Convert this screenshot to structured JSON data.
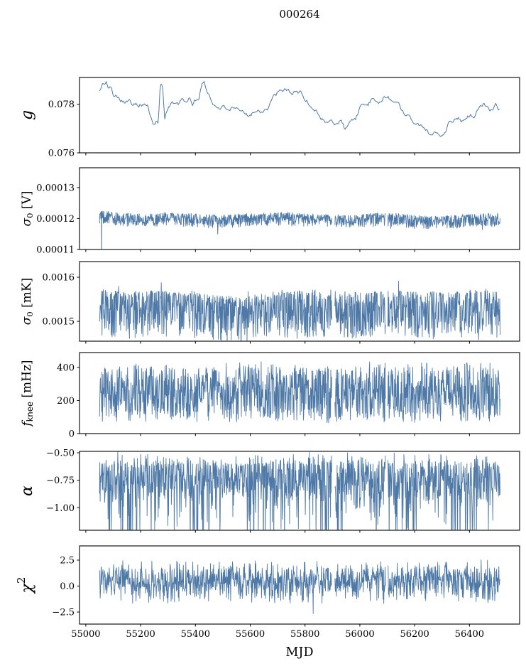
{
  "title": "000264",
  "colors": {
    "line": "#4e79a7",
    "axis": "#000000",
    "text": "#000000",
    "background": "#ffffff"
  },
  "chart_data": {
    "type": "line",
    "title": "000264",
    "xlabel": "MJD",
    "legend": "none",
    "grid": false,
    "x_axis": {
      "label": "MJD",
      "lim": [
        54977,
        56583
      ],
      "ticks": [
        55000,
        55200,
        55400,
        55600,
        55800,
        56000,
        56200,
        56400
      ],
      "tick_labels": [
        "55000",
        "55200",
        "55400",
        "55600",
        "55800",
        "56000",
        "56200",
        "56400"
      ],
      "data_range": [
        55050,
        56512
      ]
    },
    "gaps": [
      [
        55898,
        55908
      ],
      [
        56094,
        56102
      ]
    ],
    "panels": [
      {
        "id": "g",
        "ylabel": "g",
        "ylabel_size": 22,
        "ylabel_parts": [
          {
            "t": "g",
            "style": "italic"
          }
        ],
        "ylim": [
          0.076,
          0.0791
        ],
        "yticks": [
          0.076,
          0.078
        ],
        "ytick_labels": [
          "0.076",
          "0.078"
        ],
        "series_type": "smooth",
        "seed": 101,
        "anchors": [
          [
            55055,
            0.0786
          ],
          [
            55062,
            0.07888
          ],
          [
            55068,
            0.07878
          ],
          [
            55075,
            0.07885
          ],
          [
            55082,
            0.07872
          ],
          [
            55092,
            0.0787
          ],
          [
            55100,
            0.07832
          ],
          [
            55108,
            0.07845
          ],
          [
            55115,
            0.0784
          ],
          [
            55125,
            0.0782
          ],
          [
            55135,
            0.07818
          ],
          [
            55145,
            0.0781
          ],
          [
            55158,
            0.07812
          ],
          [
            55170,
            0.07802
          ],
          [
            55180,
            0.0781
          ],
          [
            55192,
            0.078
          ],
          [
            55205,
            0.07797
          ],
          [
            55218,
            0.078
          ],
          [
            55228,
            0.07788
          ],
          [
            55238,
            0.0774
          ],
          [
            55248,
            0.07712
          ],
          [
            55258,
            0.0773
          ],
          [
            55264,
            0.07718
          ],
          [
            55272,
            0.0788
          ],
          [
            55280,
            0.07885
          ],
          [
            55288,
            0.0774
          ],
          [
            55296,
            0.0778
          ],
          [
            55305,
            0.07795
          ],
          [
            55315,
            0.07808
          ],
          [
            55328,
            0.078
          ],
          [
            55340,
            0.07798
          ],
          [
            55352,
            0.0782
          ],
          [
            55365,
            0.07812
          ],
          [
            55378,
            0.0782
          ],
          [
            55390,
            0.078
          ],
          [
            55402,
            0.0782
          ],
          [
            55412,
            0.07818
          ],
          [
            55422,
            0.0788
          ],
          [
            55432,
            0.07888
          ],
          [
            55442,
            0.0785
          ],
          [
            55452,
            0.0784
          ],
          [
            55462,
            0.078
          ],
          [
            55475,
            0.0779
          ],
          [
            55490,
            0.07788
          ],
          [
            55505,
            0.07785
          ],
          [
            55520,
            0.07782
          ],
          [
            55535,
            0.07778
          ],
          [
            55550,
            0.07775
          ],
          [
            55565,
            0.0777
          ],
          [
            55580,
            0.07762
          ],
          [
            55595,
            0.07758
          ],
          [
            55610,
            0.07765
          ],
          [
            55625,
            0.07777
          ],
          [
            55638,
            0.07772
          ],
          [
            55652,
            0.07778
          ],
          [
            55665,
            0.07782
          ],
          [
            55680,
            0.07822
          ],
          [
            55695,
            0.0784
          ],
          [
            55710,
            0.0785
          ],
          [
            55725,
            0.07858
          ],
          [
            55740,
            0.0786
          ],
          [
            55755,
            0.07842
          ],
          [
            55770,
            0.07852
          ],
          [
            55785,
            0.07848
          ],
          [
            55800,
            0.0782
          ],
          [
            55815,
            0.078
          ],
          [
            55830,
            0.0778
          ],
          [
            55845,
            0.07772
          ],
          [
            55858,
            0.07742
          ],
          [
            55870,
            0.0773
          ],
          [
            55882,
            0.07725
          ],
          [
            55895,
            0.07728
          ],
          [
            55908,
            0.0772
          ],
          [
            55920,
            0.07722
          ],
          [
            55932,
            0.0774
          ],
          [
            55945,
            0.07698
          ],
          [
            55958,
            0.07725
          ],
          [
            55970,
            0.07735
          ],
          [
            55985,
            0.0774
          ],
          [
            56000,
            0.07788
          ],
          [
            56015,
            0.07795
          ],
          [
            56030,
            0.078
          ],
          [
            56045,
            0.0782
          ],
          [
            56060,
            0.07798
          ],
          [
            56075,
            0.07815
          ],
          [
            56090,
            0.07828
          ],
          [
            56105,
            0.07825
          ],
          [
            56120,
            0.07808
          ],
          [
            56135,
            0.07818
          ],
          [
            56150,
            0.0778
          ],
          [
            56165,
            0.0776
          ],
          [
            56180,
            0.07755
          ],
          [
            56195,
            0.07735
          ],
          [
            56210,
            0.0772
          ],
          [
            56225,
            0.07712
          ],
          [
            56240,
            0.0769
          ],
          [
            56255,
            0.0768
          ],
          [
            56270,
            0.07685
          ],
          [
            56285,
            0.0768
          ],
          [
            56300,
            0.07672
          ],
          [
            56315,
            0.077
          ],
          [
            56330,
            0.0773
          ],
          [
            56345,
            0.07738
          ],
          [
            56360,
            0.07742
          ],
          [
            56375,
            0.0773
          ],
          [
            56390,
            0.07752
          ],
          [
            56405,
            0.07755
          ],
          [
            56420,
            0.07752
          ],
          [
            56435,
            0.0778
          ],
          [
            56450,
            0.078
          ],
          [
            56465,
            0.07792
          ],
          [
            56480,
            0.07778
          ],
          [
            56495,
            0.078
          ],
          [
            56505,
            0.07785
          ],
          [
            56512,
            0.0777
          ]
        ]
      },
      {
        "id": "sigma0-V",
        "ylabel": "σ0 [V]",
        "ylabel_size": 17,
        "ylabel_parts": [
          {
            "t": "σ",
            "style": "italic"
          },
          {
            "t": "0",
            "style": "sub"
          },
          {
            "t": " [V]",
            "style": "normal"
          }
        ],
        "ylim": [
          0.00011,
          0.0001364
        ],
        "yticks": [
          0.00011,
          0.00012,
          0.00013
        ],
        "ytick_labels": [
          "0.00011",
          "0.00012",
          "0.00013"
        ],
        "series_type": "noise",
        "seed": 202,
        "events": [
          [
            55058,
            0.000103
          ]
        ],
        "noise": {
          "step": 1.15,
          "env_anchors": [
            [
              55050,
              0.0001224
            ],
            [
              55080,
              0.0001222
            ],
            [
              55120,
              0.0001216
            ],
            [
              55180,
              0.0001214
            ],
            [
              55240,
              0.0001214
            ],
            [
              55300,
              0.0001218
            ],
            [
              55360,
              0.0001215
            ],
            [
              55420,
              0.0001212
            ],
            [
              55480,
              0.000121
            ],
            [
              55540,
              0.0001212
            ],
            [
              55600,
              0.0001214
            ],
            [
              55660,
              0.0001217
            ],
            [
              55720,
              0.0001219
            ],
            [
              55780,
              0.0001215
            ],
            [
              55840,
              0.0001212
            ],
            [
              55900,
              0.0001211
            ],
            [
              55960,
              0.000121
            ],
            [
              56020,
              0.0001213
            ],
            [
              56080,
              0.0001217
            ],
            [
              56140,
              0.0001215
            ],
            [
              56200,
              0.0001208
            ],
            [
              56260,
              0.0001205
            ],
            [
              56320,
              0.0001208
            ],
            [
              56380,
              0.0001211
            ],
            [
              56440,
              0.0001214
            ],
            [
              56512,
              0.0001215
            ]
          ],
          "a_up": 3e-07,
          "e_up": 1.0,
          "a_dn": 4.2e-06,
          "e_dn": 1.3,
          "p_extra_dn": 0.01,
          "extra_dn": 2.8e-06,
          "p_extra_up": 0,
          "extra_up": 0
        }
      },
      {
        "id": "sigma0-mK",
        "ylabel": "σ0 [mK]",
        "ylabel_size": 17,
        "ylabel_parts": [
          {
            "t": "σ",
            "style": "italic"
          },
          {
            "t": "0",
            "style": "sub"
          },
          {
            "t": " [mK]",
            "style": "normal"
          }
        ],
        "ylim": [
          0.001455,
          0.0016355
        ],
        "yticks": [
          0.0015,
          0.0016
        ],
        "ytick_labels": [
          "0.0015",
          "0.0016"
        ],
        "series_type": "noise",
        "seed": 303,
        "noise": {
          "step": 1.15,
          "env_anchors": [
            [
              55050,
              0.00157
            ],
            [
              55120,
              0.001566
            ],
            [
              55200,
              0.001564
            ],
            [
              55260,
              0.001568
            ],
            [
              55320,
              0.001565
            ],
            [
              55400,
              0.001565
            ],
            [
              55480,
              0.001556
            ],
            [
              55560,
              0.001554
            ],
            [
              55640,
              0.00156
            ],
            [
              55720,
              0.001564
            ],
            [
              55800,
              0.001566
            ],
            [
              55880,
              0.001566
            ],
            [
              55960,
              0.001564
            ],
            [
              56040,
              0.001566
            ],
            [
              56120,
              0.001568
            ],
            [
              56200,
              0.001566
            ],
            [
              56280,
              0.001564
            ],
            [
              56360,
              0.001566
            ],
            [
              56440,
              0.001568
            ],
            [
              56512,
              0.001566
            ]
          ],
          "a_up": 6e-06,
          "e_up": 2.5,
          "a_dn": 0.000105,
          "e_dn": 1.5,
          "p_extra_dn": 0.012,
          "extra_dn": 4e-05,
          "p_extra_up": 0.01,
          "extra_up": 3e-05
        }
      },
      {
        "id": "fknee",
        "ylabel": "f_knee [mHz]",
        "ylabel_size": 17,
        "ylabel_parts": [
          {
            "t": "f",
            "style": "italic"
          },
          {
            "t": "knee",
            "style": "sub_sans"
          },
          {
            "t": " [mHz]",
            "style": "normal"
          }
        ],
        "ylim": [
          0,
          490
        ],
        "yticks": [
          0,
          200,
          400
        ],
        "ytick_labels": [
          "0",
          "200",
          "400"
        ],
        "series_type": "noise",
        "seed": 404,
        "noise": {
          "step": 1.15,
          "env_anchors": [
            [
              55050,
              400
            ],
            [
              56512,
              400
            ]
          ],
          "a_up": 48,
          "e_up": 3.0,
          "a_dn": 335,
          "e_dn": 1.05,
          "p_extra_dn": 0.02,
          "extra_dn": 55,
          "p_extra_up": 0.01,
          "extra_up": 30
        }
      },
      {
        "id": "alpha",
        "ylabel": "α",
        "ylabel_size": 22,
        "ylabel_parts": [
          {
            "t": "α",
            "style": "italic"
          }
        ],
        "ylim": [
          -1.204,
          -0.487
        ],
        "yticks": [
          -0.5,
          -0.75,
          -1.0
        ],
        "ytick_labels": [
          "−0.50",
          "−0.75",
          "−1.00"
        ],
        "series_type": "noise",
        "seed": 505,
        "noise": {
          "step": 1.15,
          "env_anchors": [
            [
              55050,
              -0.6
            ],
            [
              56512,
              -0.6
            ]
          ],
          "a_up": 0.11,
          "e_up": 3.0,
          "a_dn": 0.34,
          "e_dn": 1.7,
          "p_extra_dn": 0.28,
          "extra_dn": 0.55,
          "p_extra_up": 0.02,
          "extra_up": 0.1,
          "mod": {
            "base": 0.55,
            "amp": 0.85,
            "freq": 0.013
          }
        }
      },
      {
        "id": "chi2",
        "ylabel": "χ²",
        "ylabel_size": 22,
        "ylabel_parts": [
          {
            "t": "χ",
            "style": "italic"
          },
          {
            "t": "2",
            "style": "sup"
          }
        ],
        "ylim": [
          -3.66,
          3.87
        ],
        "yticks": [
          2.5,
          0.0,
          -2.5
        ],
        "ytick_labels": [
          "2.5",
          "0.0",
          "−2.5"
        ],
        "series_type": "noise",
        "seed": 606,
        "noise": {
          "step": 1.15,
          "env_anchors": [
            [
              55050,
              0.55
            ],
            [
              56512,
              0.55
            ]
          ],
          "a_up": 2.0,
          "e_up": 1.5,
          "a_dn": 2.3,
          "e_dn": 1.5,
          "p_extra_dn": 0.01,
          "extra_dn": 1.3,
          "p_extra_up": 0.01,
          "extra_up": 1.3
        }
      }
    ]
  }
}
